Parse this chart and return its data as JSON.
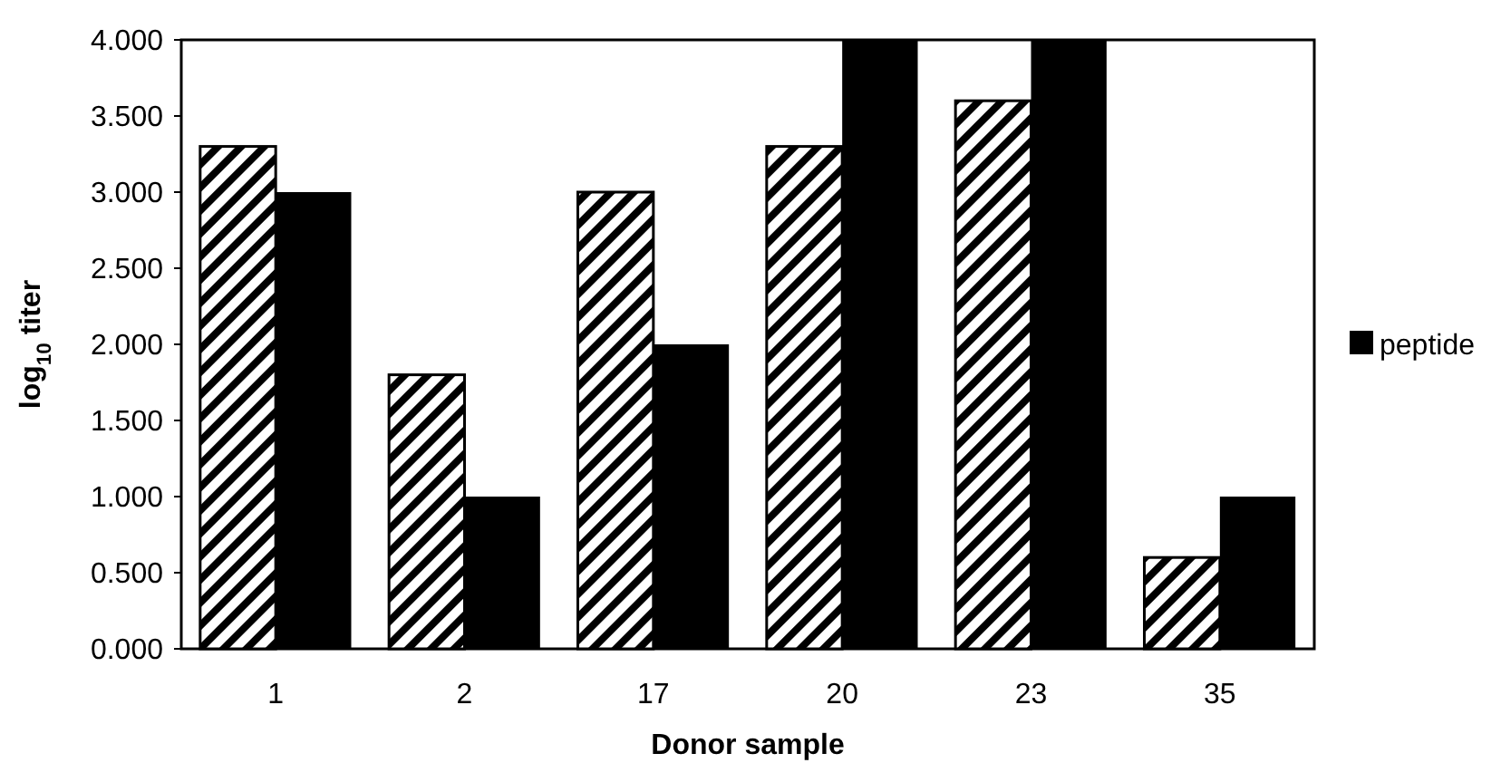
{
  "chart_data": {
    "type": "bar",
    "xlabel": "Donor sample",
    "ylabel": "log$_{10}$ titer",
    "categories": [
      "1",
      "2",
      "17",
      "20",
      "23",
      "35"
    ],
    "series": [
      {
        "color": "#000000",
        "values": [
          3.3,
          1.8,
          3.0,
          3.3,
          3.6,
          0.6
        ]
      },
      {
        "name": "peptide",
        "color": "#000000",
        "values": [
          3.0,
          1.0,
          2.0,
          4.0,
          4.0,
          1.0
        ]
      }
    ],
    "ylim": [
      0,
      4
    ],
    "yticks": [
      {
        "value": 0,
        "label": "0.000"
      },
      {
        "value": 0.5,
        "label": "0.500"
      },
      {
        "value": 1,
        "label": "1.000"
      },
      {
        "value": 1.5,
        "label": "1.500"
      },
      {
        "value": 2,
        "label": "2.000"
      },
      {
        "value": 2.5,
        "label": "2.500"
      },
      {
        "value": 3,
        "label": "3.000"
      },
      {
        "value": 3.5,
        "label": "3.500"
      },
      {
        "value": 4,
        "label": "4.000"
      }
    ],
    "grid": false,
    "legend": "right"
  }
}
